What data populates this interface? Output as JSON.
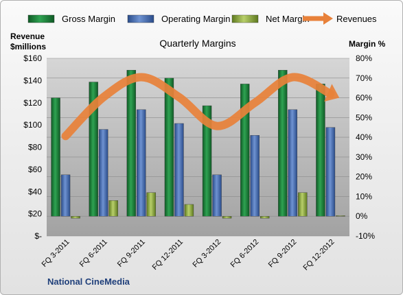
{
  "chart_data": {
    "type": "bar",
    "title": "Quarterly Margins",
    "categories": [
      "FQ 3-2011",
      "FQ 6-2011",
      "FQ 9-2011",
      "FQ 12-2011",
      "FQ 3-2012",
      "FQ 6-2012",
      "FQ 9-2012",
      "FQ 12-2012"
    ],
    "series": [
      {
        "name": "Gross Margin",
        "axis": "right",
        "type": "bar",
        "color": "#1e7e3a",
        "values": [
          60,
          68,
          74,
          70,
          56,
          67,
          74,
          67
        ]
      },
      {
        "name": "Operating Margin",
        "axis": "right",
        "type": "bar",
        "color": "#4a6fb0",
        "values": [
          21,
          44,
          54,
          47,
          21,
          41,
          54,
          45
        ]
      },
      {
        "name": "Net Margin",
        "axis": "right",
        "type": "bar",
        "color": "#8ca63c",
        "values": [
          -1,
          8,
          12,
          6,
          -1,
          -1,
          12,
          0.3
        ]
      },
      {
        "name": "Revenues",
        "axis": "left",
        "type": "line",
        "color": "#e8813a",
        "values": [
          90,
          125,
          143,
          125,
          99,
          120,
          143,
          128
        ]
      }
    ],
    "yleft": {
      "label_line1": "Revenue",
      "label_line2": "$millions",
      "min": 0,
      "max": 160,
      "ticks": [
        "$-",
        "$20",
        "$40",
        "$60",
        "$80",
        "$100",
        "$120",
        "$140",
        "$160"
      ]
    },
    "yright": {
      "label": "Margin %",
      "min": -10,
      "max": 80,
      "ticks": [
        "-10%",
        "0%",
        "10%",
        "20%",
        "30%",
        "40%",
        "50%",
        "60%",
        "70%",
        "80%"
      ]
    },
    "legend_position": "top",
    "grid": true,
    "source": "National CineMedia"
  }
}
